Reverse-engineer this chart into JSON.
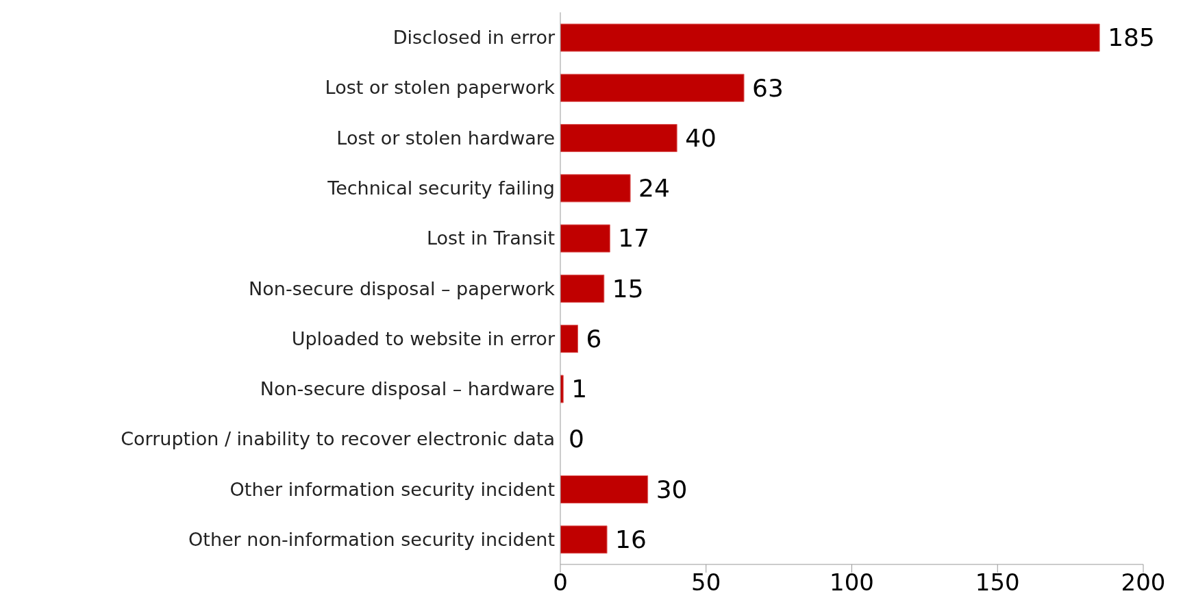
{
  "chart_data": {
    "type": "bar",
    "orientation": "horizontal",
    "categories": [
      "Disclosed in error",
      "Lost or stolen paperwork",
      "Lost or stolen hardware",
      "Technical security failing",
      "Lost in Transit",
      "Non-secure disposal – paperwork",
      "Uploaded to website in error",
      "Non-secure disposal – hardware",
      "Corruption / inability to recover electronic data",
      "Other information security incident",
      "Other non-information security incident"
    ],
    "values": [
      185,
      63,
      40,
      24,
      17,
      15,
      6,
      1,
      0,
      30,
      16
    ],
    "color": "#c00000",
    "xlim": [
      0,
      200
    ],
    "xticks": [
      0,
      50,
      100,
      150,
      200
    ],
    "data_labels": true,
    "grid": false
  }
}
